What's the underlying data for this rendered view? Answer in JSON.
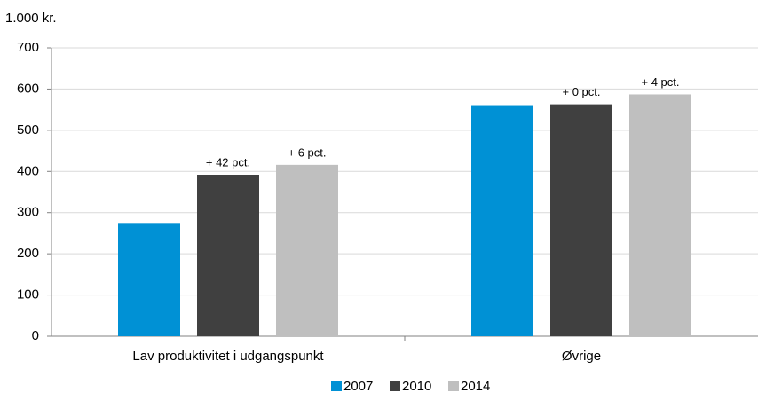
{
  "chart_data": {
    "type": "bar",
    "ylabel": "1.000 kr.",
    "categories": [
      "Lav produktivitet i udgangspunkt",
      "Øvrige"
    ],
    "series": [
      {
        "name": "2007",
        "color": "#0091d5",
        "values": [
          275,
          561
        ]
      },
      {
        "name": "2010",
        "color": "#404040",
        "values": [
          392,
          563
        ]
      },
      {
        "name": "2014",
        "color": "#bfbfbf",
        "values": [
          416,
          587
        ]
      }
    ],
    "annotations": [
      {
        "text": "+ 42 pct.",
        "series": 1,
        "category": 0
      },
      {
        "text": "+ 6 pct.",
        "series": 2,
        "category": 0
      },
      {
        "text": "+ 0 pct.",
        "series": 1,
        "category": 1
      },
      {
        "text": "+ 4 pct.",
        "series": 2,
        "category": 1
      }
    ],
    "ylim": [
      0,
      700
    ],
    "yticks": [
      0,
      100,
      200,
      300,
      400,
      500,
      600,
      700
    ],
    "grid": true,
    "legend": "bottom"
  }
}
